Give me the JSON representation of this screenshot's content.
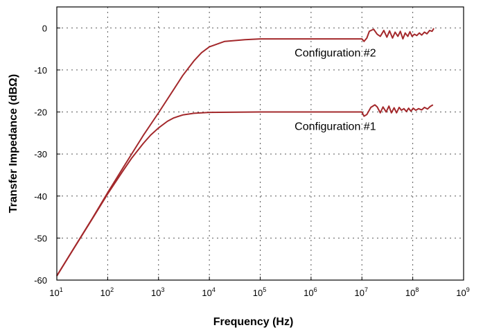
{
  "chart_data": {
    "type": "line",
    "xlabel": "Frequency (Hz)",
    "ylabel": "Transfer Impedance (dBΩ)",
    "x_scale": "log",
    "xlim": [
      10,
      1000000000
    ],
    "ylim": [
      -60,
      5
    ],
    "grid": true,
    "x_ticks": [
      {
        "value": 10,
        "base": "10",
        "exp": "1"
      },
      {
        "value": 100,
        "base": "10",
        "exp": "2"
      },
      {
        "value": 1000,
        "base": "10",
        "exp": "3"
      },
      {
        "value": 10000,
        "base": "10",
        "exp": "4"
      },
      {
        "value": 100000,
        "base": "10",
        "exp": "5"
      },
      {
        "value": 1000000,
        "base": "10",
        "exp": "6"
      },
      {
        "value": 10000000,
        "base": "10",
        "exp": "7"
      },
      {
        "value": 100000000,
        "base": "10",
        "exp": "8"
      },
      {
        "value": 1000000000,
        "base": "10",
        "exp": "9"
      }
    ],
    "y_ticks": [
      "0",
      "-10",
      "-20",
      "-30",
      "-40",
      "-50",
      "-60"
    ],
    "y_tick_values": [
      0,
      -10,
      -20,
      -30,
      -40,
      -50,
      -60
    ],
    "series": [
      {
        "name": "Configuration #2",
        "color": "#a3282b",
        "x": [
          10,
          20,
          50,
          100,
          200,
          500,
          1000,
          2000,
          3000,
          5000,
          7000,
          10000,
          20000,
          50000,
          100000,
          300000,
          1000000,
          3000000,
          10000000,
          11000000,
          12500000,
          14000000,
          17000000,
          20000000,
          23000000,
          27000000,
          31000000,
          35000000,
          40000000,
          45000000,
          51000000,
          57000000,
          64000000,
          71000000,
          80000000,
          88000000,
          97000000,
          108000000,
          120000000,
          135000000,
          150000000,
          170000000,
          190000000,
          215000000,
          240000000,
          260000000
        ],
        "values": [
          -59,
          -53.1,
          -45.3,
          -39.2,
          -33.3,
          -25.6,
          -20.2,
          -14.6,
          -11.3,
          -7.8,
          -5.9,
          -4.5,
          -3.2,
          -2.8,
          -2.6,
          -2.6,
          -2.6,
          -2.6,
          -2.6,
          -3.2,
          -2.4,
          -0.8,
          -0.3,
          -1.5,
          -2.0,
          -0.6,
          -2.2,
          -0.7,
          -2.4,
          -1.0,
          -2.0,
          -0.8,
          -2.6,
          -1.2,
          -2.0,
          -0.9,
          -2.0,
          -1.5,
          -1.8,
          -1.2,
          -1.7,
          -1.0,
          -1.4,
          -0.6,
          -0.8,
          -0.1
        ]
      },
      {
        "name": "Configuration #1",
        "color": "#a3282b",
        "x": [
          10,
          20,
          50,
          100,
          200,
          300,
          500,
          700,
          1000,
          1500,
          2000,
          3000,
          5000,
          10000,
          100000,
          1000000,
          10000000,
          11000000,
          12500000,
          15000000,
          18000000,
          20000000,
          23000000,
          26000000,
          30000000,
          34000000,
          38000000,
          43000000,
          48000000,
          54000000,
          60000000,
          67000000,
          75000000,
          83000000,
          92000000,
          102000000,
          115000000,
          130000000,
          150000000,
          170000000,
          195000000,
          220000000,
          250000000
        ],
        "values": [
          -59,
          -53.1,
          -45.4,
          -39.5,
          -34.0,
          -30.9,
          -27.5,
          -25.5,
          -23.8,
          -22.2,
          -21.4,
          -20.7,
          -20.3,
          -20.1,
          -20.0,
          -20.0,
          -20.0,
          -21.0,
          -20.6,
          -18.9,
          -18.3,
          -18.8,
          -20.2,
          -18.8,
          -20.0,
          -18.6,
          -20.2,
          -19.0,
          -20.2,
          -18.9,
          -19.6,
          -19.2,
          -19.9,
          -19.1,
          -19.8,
          -19.1,
          -19.6,
          -19.2,
          -19.5,
          -18.9,
          -19.3,
          -18.7,
          -18.3
        ]
      }
    ],
    "annotations": [
      {
        "text": "Configuration #2",
        "x": 3000000,
        "y": -6.8
      },
      {
        "text": "Configuration #1",
        "x": 3000000,
        "y": -24.3
      }
    ]
  }
}
